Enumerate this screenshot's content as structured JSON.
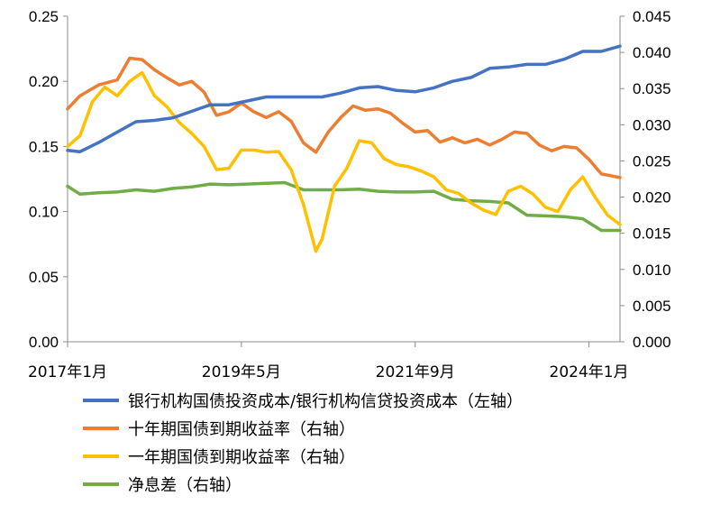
{
  "chart_data": {
    "type": "line",
    "x_tick_labels": [
      "2017年1月",
      "2019年5月",
      "2021年9月",
      "2024年1月"
    ],
    "x_range": [
      "2017-01",
      "2024-06"
    ],
    "y_left": {
      "range": [
        0,
        0.25
      ],
      "ticks": [
        "0.00",
        "0.05",
        "0.10",
        "0.15",
        "0.20",
        "0.25"
      ]
    },
    "y_right": {
      "range": [
        0,
        0.045
      ],
      "ticks": [
        "0.000",
        "0.005",
        "0.010",
        "0.015",
        "0.020",
        "0.025",
        "0.030",
        "0.035",
        "0.040",
        "0.045"
      ]
    },
    "grid": false,
    "legend_position": "bottom",
    "series": [
      {
        "name": "银行机构国债投资成本/银行机构信贷投资成本（左轴）",
        "axis": "left",
        "color": "#4472C4",
        "points": [
          [
            "2017-01",
            0.147
          ],
          [
            "2017-03",
            0.146
          ],
          [
            "2017-06",
            0.153
          ],
          [
            "2017-09",
            0.161
          ],
          [
            "2017-12",
            0.169
          ],
          [
            "2018-03",
            0.17
          ],
          [
            "2018-06",
            0.172
          ],
          [
            "2018-09",
            0.177
          ],
          [
            "2018-12",
            0.182
          ],
          [
            "2019-03",
            0.182
          ],
          [
            "2019-06",
            0.185
          ],
          [
            "2019-09",
            0.188
          ],
          [
            "2019-12",
            0.188
          ],
          [
            "2020-03",
            0.188
          ],
          [
            "2020-06",
            0.188
          ],
          [
            "2020-09",
            0.191
          ],
          [
            "2020-12",
            0.195
          ],
          [
            "2021-03",
            0.196
          ],
          [
            "2021-06",
            0.193
          ],
          [
            "2021-09",
            0.192
          ],
          [
            "2021-12",
            0.195
          ],
          [
            "2022-03",
            0.2
          ],
          [
            "2022-06",
            0.203
          ],
          [
            "2022-09",
            0.21
          ],
          [
            "2022-12",
            0.211
          ],
          [
            "2023-03",
            0.213
          ],
          [
            "2023-06",
            0.213
          ],
          [
            "2023-09",
            0.217
          ],
          [
            "2023-12",
            0.223
          ],
          [
            "2024-03",
            0.223
          ],
          [
            "2024-06",
            0.227
          ]
        ]
      },
      {
        "name": "十年期国债到期收益率（右轴）",
        "axis": "right",
        "color": "#ED7D31",
        "points": [
          [
            "2017-01",
            0.0322
          ],
          [
            "2017-03",
            0.034
          ],
          [
            "2017-06",
            0.0355
          ],
          [
            "2017-09",
            0.0362
          ],
          [
            "2017-11",
            0.0392
          ],
          [
            "2018-01",
            0.039
          ],
          [
            "2018-03",
            0.0376
          ],
          [
            "2018-05",
            0.0365
          ],
          [
            "2018-07",
            0.0355
          ],
          [
            "2018-09",
            0.036
          ],
          [
            "2018-11",
            0.0345
          ],
          [
            "2019-01",
            0.0313
          ],
          [
            "2019-03",
            0.0318
          ],
          [
            "2019-05",
            0.033
          ],
          [
            "2019-07",
            0.0318
          ],
          [
            "2019-09",
            0.031
          ],
          [
            "2019-11",
            0.0318
          ],
          [
            "2020-01",
            0.0305
          ],
          [
            "2020-03",
            0.0275
          ],
          [
            "2020-05",
            0.0262
          ],
          [
            "2020-07",
            0.029
          ],
          [
            "2020-09",
            0.031
          ],
          [
            "2020-11",
            0.0326
          ],
          [
            "2021-01",
            0.032
          ],
          [
            "2021-03",
            0.0322
          ],
          [
            "2021-05",
            0.0316
          ],
          [
            "2021-07",
            0.0302
          ],
          [
            "2021-09",
            0.029
          ],
          [
            "2021-11",
            0.0292
          ],
          [
            "2022-01",
            0.0276
          ],
          [
            "2022-03",
            0.0282
          ],
          [
            "2022-05",
            0.0275
          ],
          [
            "2022-07",
            0.028
          ],
          [
            "2022-09",
            0.0272
          ],
          [
            "2022-11",
            0.028
          ],
          [
            "2023-01",
            0.029
          ],
          [
            "2023-03",
            0.0288
          ],
          [
            "2023-05",
            0.0272
          ],
          [
            "2023-07",
            0.0264
          ],
          [
            "2023-09",
            0.027
          ],
          [
            "2023-11",
            0.0268
          ],
          [
            "2024-01",
            0.0252
          ],
          [
            "2024-03",
            0.0232
          ],
          [
            "2024-06",
            0.0227
          ]
        ]
      },
      {
        "name": "一年期国债到期收益率（右轴）",
        "axis": "right",
        "color": "#FFC000",
        "points": [
          [
            "2017-01",
            0.027
          ],
          [
            "2017-03",
            0.0285
          ],
          [
            "2017-05",
            0.0332
          ],
          [
            "2017-07",
            0.0352
          ],
          [
            "2017-09",
            0.034
          ],
          [
            "2017-11",
            0.036
          ],
          [
            "2018-01",
            0.0372
          ],
          [
            "2018-03",
            0.034
          ],
          [
            "2018-05",
            0.0325
          ],
          [
            "2018-07",
            0.0303
          ],
          [
            "2018-09",
            0.0288
          ],
          [
            "2018-11",
            0.027
          ],
          [
            "2019-01",
            0.0238
          ],
          [
            "2019-03",
            0.024
          ],
          [
            "2019-05",
            0.0265
          ],
          [
            "2019-07",
            0.0265
          ],
          [
            "2019-09",
            0.0262
          ],
          [
            "2019-11",
            0.0263
          ],
          [
            "2020-01",
            0.0238
          ],
          [
            "2020-03",
            0.019
          ],
          [
            "2020-05",
            0.0125
          ],
          [
            "2020-06",
            0.0142
          ],
          [
            "2020-08",
            0.0215
          ],
          [
            "2020-10",
            0.024
          ],
          [
            "2020-12",
            0.0278
          ],
          [
            "2021-02",
            0.0275
          ],
          [
            "2021-04",
            0.0253
          ],
          [
            "2021-06",
            0.0245
          ],
          [
            "2021-08",
            0.0242
          ],
          [
            "2021-10",
            0.0236
          ],
          [
            "2021-12",
            0.0228
          ],
          [
            "2022-02",
            0.021
          ],
          [
            "2022-04",
            0.0205
          ],
          [
            "2022-06",
            0.0192
          ],
          [
            "2022-08",
            0.0182
          ],
          [
            "2022-10",
            0.0176
          ],
          [
            "2022-12",
            0.0208
          ],
          [
            "2023-02",
            0.0215
          ],
          [
            "2023-04",
            0.0204
          ],
          [
            "2023-06",
            0.0186
          ],
          [
            "2023-08",
            0.018
          ],
          [
            "2023-10",
            0.021
          ],
          [
            "2023-12",
            0.0228
          ],
          [
            "2024-02",
            0.02
          ],
          [
            "2024-04",
            0.0175
          ],
          [
            "2024-06",
            0.0162
          ]
        ]
      },
      {
        "name": "净息差（右轴）",
        "axis": "right",
        "color": "#70AD47",
        "points": [
          [
            "2017-01",
            0.0215
          ],
          [
            "2017-03",
            0.0204
          ],
          [
            "2017-06",
            0.0206
          ],
          [
            "2017-09",
            0.0207
          ],
          [
            "2017-12",
            0.021
          ],
          [
            "2018-03",
            0.0208
          ],
          [
            "2018-06",
            0.0212
          ],
          [
            "2018-09",
            0.0214
          ],
          [
            "2018-12",
            0.0218
          ],
          [
            "2019-03",
            0.0217
          ],
          [
            "2019-06",
            0.0218
          ],
          [
            "2019-09",
            0.0219
          ],
          [
            "2019-12",
            0.022
          ],
          [
            "2020-03",
            0.021
          ],
          [
            "2020-06",
            0.021
          ],
          [
            "2020-09",
            0.021
          ],
          [
            "2020-12",
            0.0211
          ],
          [
            "2021-03",
            0.0208
          ],
          [
            "2021-06",
            0.0207
          ],
          [
            "2021-09",
            0.0207
          ],
          [
            "2021-12",
            0.0208
          ],
          [
            "2022-03",
            0.0197
          ],
          [
            "2022-06",
            0.0195
          ],
          [
            "2022-09",
            0.0194
          ],
          [
            "2022-12",
            0.0192
          ],
          [
            "2023-03",
            0.0175
          ],
          [
            "2023-06",
            0.0174
          ],
          [
            "2023-09",
            0.0173
          ],
          [
            "2023-12",
            0.017
          ],
          [
            "2024-03",
            0.0154
          ],
          [
            "2024-06",
            0.0154
          ]
        ]
      }
    ]
  }
}
